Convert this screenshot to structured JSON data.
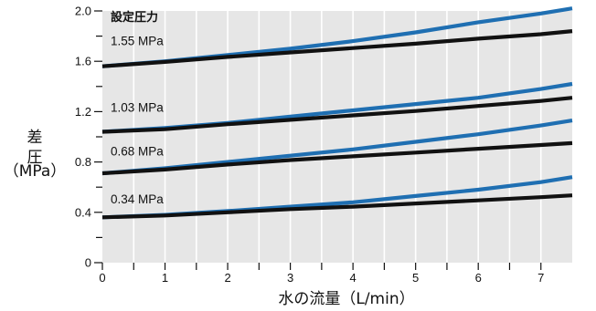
{
  "chart_data": {
    "type": "line",
    "xlabel": "水の流量（L/min）",
    "ylabel_parts": [
      "差",
      "圧",
      "（MPa）"
    ],
    "xlim": [
      0,
      7.5
    ],
    "ylim": [
      0,
      2.0
    ],
    "x_ticks": [
      0,
      1,
      2,
      3,
      4,
      5,
      6,
      7
    ],
    "x_tick_labels": [
      "0",
      "1",
      "2",
      "3",
      "4",
      "5",
      "6",
      "7"
    ],
    "x_minor_ticks": [
      0.5,
      1.5,
      2.5,
      3.5,
      4.5,
      5.5,
      6.5
    ],
    "y_ticks": [
      0,
      0.4,
      0.8,
      1.2,
      1.6,
      2.0
    ],
    "y_tick_labels": [
      "0",
      "0.4",
      "0.8",
      "1.2",
      "1.6",
      "2.0"
    ],
    "y_minor_ticks": [
      0.2,
      0.6,
      1.0,
      1.4,
      1.8
    ],
    "background": "#e6e6e6",
    "grid": "vertical",
    "colors": {
      "blue": "#1f6fb2",
      "black": "#111111",
      "grid": "#ffffff"
    },
    "legend_title": "設定圧力",
    "set_pressure_labels": [
      "1.55 MPa",
      "1.03 MPa",
      "0.68 MPa",
      "0.34 MPa"
    ],
    "series": [
      {
        "color": "blue",
        "x": [
          0,
          1,
          2,
          3,
          4,
          5,
          6,
          7,
          7.5
        ],
        "y": [
          1.56,
          1.6,
          1.65,
          1.7,
          1.76,
          1.83,
          1.91,
          1.98,
          2.02
        ]
      },
      {
        "color": "black",
        "x": [
          0,
          1,
          2,
          3,
          4,
          5,
          6,
          7,
          7.5
        ],
        "y": [
          1.56,
          1.595,
          1.635,
          1.67,
          1.705,
          1.74,
          1.78,
          1.815,
          1.84
        ]
      },
      {
        "color": "blue",
        "x": [
          0,
          1,
          2,
          3,
          4,
          5,
          6,
          7,
          7.5
        ],
        "y": [
          1.04,
          1.07,
          1.11,
          1.16,
          1.21,
          1.26,
          1.31,
          1.38,
          1.42
        ]
      },
      {
        "color": "black",
        "x": [
          0,
          1,
          2,
          3,
          4,
          5,
          6,
          7,
          7.5
        ],
        "y": [
          1.04,
          1.06,
          1.1,
          1.135,
          1.17,
          1.205,
          1.245,
          1.285,
          1.31
        ]
      },
      {
        "color": "blue",
        "x": [
          0,
          1,
          2,
          3,
          4,
          5,
          6,
          7,
          7.5
        ],
        "y": [
          0.71,
          0.75,
          0.8,
          0.85,
          0.9,
          0.96,
          1.02,
          1.09,
          1.13
        ]
      },
      {
        "color": "black",
        "x": [
          0,
          1,
          2,
          3,
          4,
          5,
          6,
          7,
          7.5
        ],
        "y": [
          0.71,
          0.74,
          0.78,
          0.815,
          0.845,
          0.875,
          0.905,
          0.935,
          0.95
        ]
      },
      {
        "color": "blue",
        "x": [
          0,
          1,
          2,
          3,
          4,
          5,
          6,
          7,
          7.5
        ],
        "y": [
          0.36,
          0.38,
          0.41,
          0.445,
          0.48,
          0.53,
          0.58,
          0.64,
          0.68
        ]
      },
      {
        "color": "black",
        "x": [
          0,
          1,
          2,
          3,
          4,
          5,
          6,
          7,
          7.5
        ],
        "y": [
          0.36,
          0.375,
          0.4,
          0.425,
          0.445,
          0.47,
          0.495,
          0.52,
          0.535
        ]
      }
    ]
  }
}
